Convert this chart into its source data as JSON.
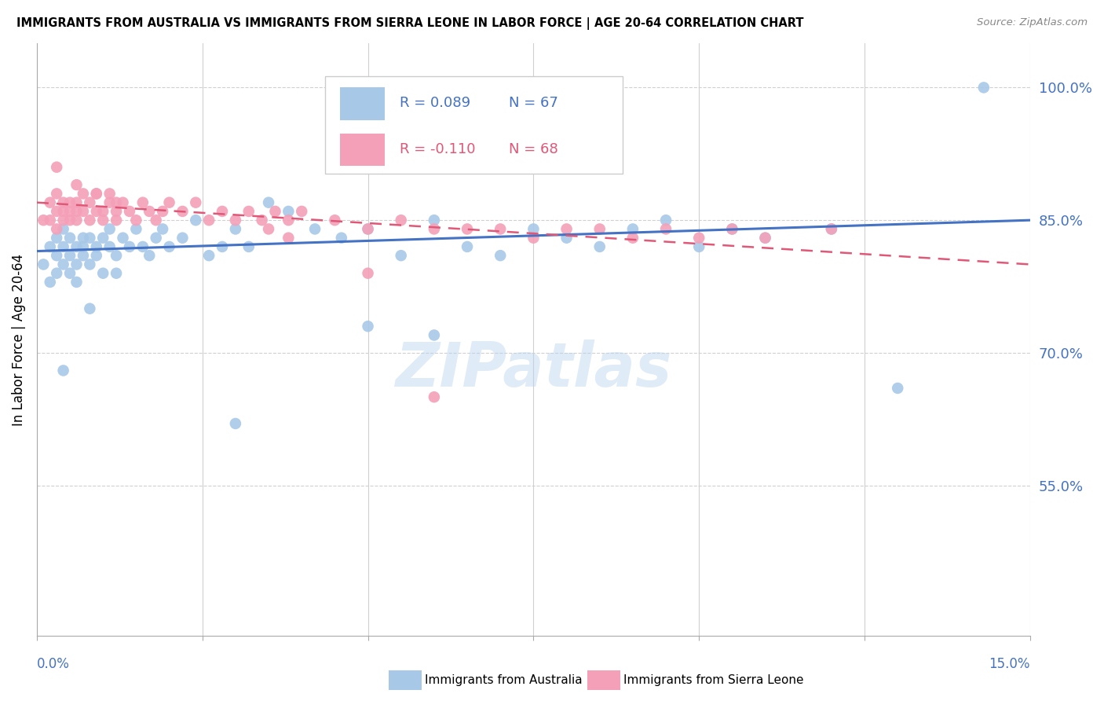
{
  "title": "IMMIGRANTS FROM AUSTRALIA VS IMMIGRANTS FROM SIERRA LEONE IN LABOR FORCE | AGE 20-64 CORRELATION CHART",
  "source": "Source: ZipAtlas.com",
  "ylabel": "In Labor Force | Age 20-64",
  "ytick_labels": [
    "100.0%",
    "85.0%",
    "70.0%",
    "55.0%"
  ],
  "ytick_values": [
    1.0,
    0.85,
    0.7,
    0.55
  ],
  "xlim": [
    0.0,
    0.15
  ],
  "ylim": [
    0.38,
    1.05
  ],
  "legend_r_australia": "R = 0.089",
  "legend_n_australia": "N = 67",
  "legend_r_sierra": "R = -0.110",
  "legend_n_sierra": "N = 68",
  "color_australia": "#a8c8e8",
  "color_australia_line": "#4472c4",
  "color_sierra": "#f4a0b8",
  "color_sierra_line": "#e05878",
  "color_axis_labels": "#4472c4",
  "watermark": "ZIPatlas",
  "aus_x": [
    0.001,
    0.002,
    0.002,
    0.003,
    0.003,
    0.003,
    0.004,
    0.004,
    0.004,
    0.005,
    0.005,
    0.005,
    0.006,
    0.006,
    0.006,
    0.007,
    0.007,
    0.007,
    0.008,
    0.008,
    0.009,
    0.009,
    0.01,
    0.01,
    0.011,
    0.011,
    0.012,
    0.012,
    0.013,
    0.014,
    0.015,
    0.016,
    0.017,
    0.018,
    0.019,
    0.02,
    0.022,
    0.024,
    0.026,
    0.028,
    0.03,
    0.032,
    0.035,
    0.038,
    0.042,
    0.046,
    0.05,
    0.055,
    0.06,
    0.065,
    0.07,
    0.075,
    0.08,
    0.085,
    0.09,
    0.095,
    0.1,
    0.105,
    0.11,
    0.12,
    0.004,
    0.008,
    0.05,
    0.06,
    0.13,
    0.143,
    0.03
  ],
  "aus_y": [
    0.8,
    0.82,
    0.78,
    0.81,
    0.83,
    0.79,
    0.82,
    0.8,
    0.84,
    0.81,
    0.79,
    0.83,
    0.82,
    0.8,
    0.78,
    0.83,
    0.81,
    0.82,
    0.83,
    0.8,
    0.81,
    0.82,
    0.83,
    0.79,
    0.84,
    0.82,
    0.81,
    0.79,
    0.83,
    0.82,
    0.84,
    0.82,
    0.81,
    0.83,
    0.84,
    0.82,
    0.83,
    0.85,
    0.81,
    0.82,
    0.84,
    0.82,
    0.87,
    0.86,
    0.84,
    0.83,
    0.84,
    0.81,
    0.85,
    0.82,
    0.81,
    0.84,
    0.83,
    0.82,
    0.84,
    0.85,
    0.82,
    0.84,
    0.83,
    0.84,
    0.68,
    0.75,
    0.73,
    0.72,
    0.66,
    1.0,
    0.62
  ],
  "sierra_x": [
    0.001,
    0.002,
    0.002,
    0.003,
    0.003,
    0.003,
    0.004,
    0.004,
    0.004,
    0.005,
    0.005,
    0.005,
    0.006,
    0.006,
    0.006,
    0.007,
    0.007,
    0.008,
    0.008,
    0.009,
    0.009,
    0.01,
    0.01,
    0.011,
    0.011,
    0.012,
    0.012,
    0.013,
    0.014,
    0.015,
    0.016,
    0.017,
    0.018,
    0.019,
    0.02,
    0.022,
    0.024,
    0.026,
    0.028,
    0.03,
    0.032,
    0.034,
    0.036,
    0.038,
    0.04,
    0.045,
    0.05,
    0.055,
    0.06,
    0.065,
    0.07,
    0.075,
    0.08,
    0.085,
    0.09,
    0.095,
    0.1,
    0.105,
    0.11,
    0.12,
    0.003,
    0.006,
    0.009,
    0.012,
    0.035,
    0.038,
    0.05,
    0.06
  ],
  "sierra_y": [
    0.85,
    0.87,
    0.85,
    0.86,
    0.84,
    0.88,
    0.85,
    0.87,
    0.86,
    0.85,
    0.87,
    0.86,
    0.85,
    0.87,
    0.86,
    0.88,
    0.86,
    0.85,
    0.87,
    0.86,
    0.88,
    0.86,
    0.85,
    0.88,
    0.87,
    0.86,
    0.85,
    0.87,
    0.86,
    0.85,
    0.87,
    0.86,
    0.85,
    0.86,
    0.87,
    0.86,
    0.87,
    0.85,
    0.86,
    0.85,
    0.86,
    0.85,
    0.86,
    0.85,
    0.86,
    0.85,
    0.84,
    0.85,
    0.84,
    0.84,
    0.84,
    0.83,
    0.84,
    0.84,
    0.83,
    0.84,
    0.83,
    0.84,
    0.83,
    0.84,
    0.91,
    0.89,
    0.88,
    0.87,
    0.84,
    0.83,
    0.79,
    0.65
  ]
}
